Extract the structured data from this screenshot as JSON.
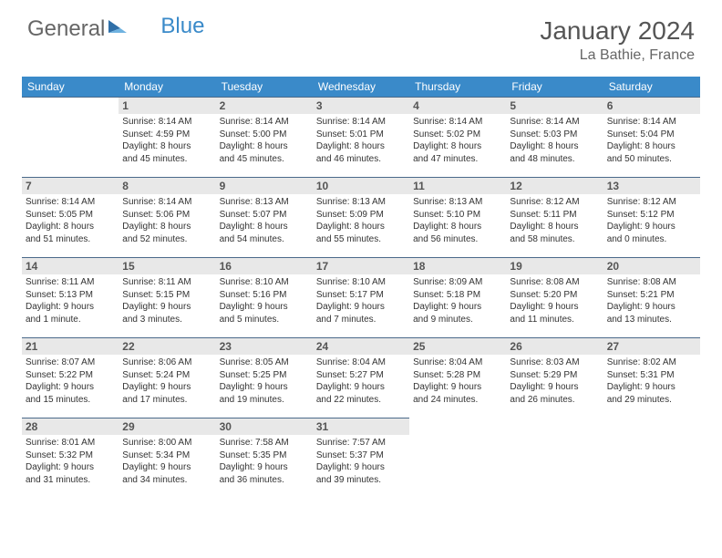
{
  "logo": {
    "part1": "General",
    "part2": "Blue"
  },
  "title": "January 2024",
  "location": "La Bathie, France",
  "colors": {
    "header_bg": "#3a8ac9",
    "daynum_bg": "#e8e8e8",
    "daynum_border": "#4a6a8a",
    "text": "#333333",
    "title_text": "#555555"
  },
  "dow": [
    "Sunday",
    "Monday",
    "Tuesday",
    "Wednesday",
    "Thursday",
    "Friday",
    "Saturday"
  ],
  "weeks": [
    [
      null,
      {
        "n": "1",
        "sr": "Sunrise: 8:14 AM",
        "ss": "Sunset: 4:59 PM",
        "d1": "Daylight: 8 hours",
        "d2": "and 45 minutes."
      },
      {
        "n": "2",
        "sr": "Sunrise: 8:14 AM",
        "ss": "Sunset: 5:00 PM",
        "d1": "Daylight: 8 hours",
        "d2": "and 45 minutes."
      },
      {
        "n": "3",
        "sr": "Sunrise: 8:14 AM",
        "ss": "Sunset: 5:01 PM",
        "d1": "Daylight: 8 hours",
        "d2": "and 46 minutes."
      },
      {
        "n": "4",
        "sr": "Sunrise: 8:14 AM",
        "ss": "Sunset: 5:02 PM",
        "d1": "Daylight: 8 hours",
        "d2": "and 47 minutes."
      },
      {
        "n": "5",
        "sr": "Sunrise: 8:14 AM",
        "ss": "Sunset: 5:03 PM",
        "d1": "Daylight: 8 hours",
        "d2": "and 48 minutes."
      },
      {
        "n": "6",
        "sr": "Sunrise: 8:14 AM",
        "ss": "Sunset: 5:04 PM",
        "d1": "Daylight: 8 hours",
        "d2": "and 50 minutes."
      }
    ],
    [
      {
        "n": "7",
        "sr": "Sunrise: 8:14 AM",
        "ss": "Sunset: 5:05 PM",
        "d1": "Daylight: 8 hours",
        "d2": "and 51 minutes."
      },
      {
        "n": "8",
        "sr": "Sunrise: 8:14 AM",
        "ss": "Sunset: 5:06 PM",
        "d1": "Daylight: 8 hours",
        "d2": "and 52 minutes."
      },
      {
        "n": "9",
        "sr": "Sunrise: 8:13 AM",
        "ss": "Sunset: 5:07 PM",
        "d1": "Daylight: 8 hours",
        "d2": "and 54 minutes."
      },
      {
        "n": "10",
        "sr": "Sunrise: 8:13 AM",
        "ss": "Sunset: 5:09 PM",
        "d1": "Daylight: 8 hours",
        "d2": "and 55 minutes."
      },
      {
        "n": "11",
        "sr": "Sunrise: 8:13 AM",
        "ss": "Sunset: 5:10 PM",
        "d1": "Daylight: 8 hours",
        "d2": "and 56 minutes."
      },
      {
        "n": "12",
        "sr": "Sunrise: 8:12 AM",
        "ss": "Sunset: 5:11 PM",
        "d1": "Daylight: 8 hours",
        "d2": "and 58 minutes."
      },
      {
        "n": "13",
        "sr": "Sunrise: 8:12 AM",
        "ss": "Sunset: 5:12 PM",
        "d1": "Daylight: 9 hours",
        "d2": "and 0 minutes."
      }
    ],
    [
      {
        "n": "14",
        "sr": "Sunrise: 8:11 AM",
        "ss": "Sunset: 5:13 PM",
        "d1": "Daylight: 9 hours",
        "d2": "and 1 minute."
      },
      {
        "n": "15",
        "sr": "Sunrise: 8:11 AM",
        "ss": "Sunset: 5:15 PM",
        "d1": "Daylight: 9 hours",
        "d2": "and 3 minutes."
      },
      {
        "n": "16",
        "sr": "Sunrise: 8:10 AM",
        "ss": "Sunset: 5:16 PM",
        "d1": "Daylight: 9 hours",
        "d2": "and 5 minutes."
      },
      {
        "n": "17",
        "sr": "Sunrise: 8:10 AM",
        "ss": "Sunset: 5:17 PM",
        "d1": "Daylight: 9 hours",
        "d2": "and 7 minutes."
      },
      {
        "n": "18",
        "sr": "Sunrise: 8:09 AM",
        "ss": "Sunset: 5:18 PM",
        "d1": "Daylight: 9 hours",
        "d2": "and 9 minutes."
      },
      {
        "n": "19",
        "sr": "Sunrise: 8:08 AM",
        "ss": "Sunset: 5:20 PM",
        "d1": "Daylight: 9 hours",
        "d2": "and 11 minutes."
      },
      {
        "n": "20",
        "sr": "Sunrise: 8:08 AM",
        "ss": "Sunset: 5:21 PM",
        "d1": "Daylight: 9 hours",
        "d2": "and 13 minutes."
      }
    ],
    [
      {
        "n": "21",
        "sr": "Sunrise: 8:07 AM",
        "ss": "Sunset: 5:22 PM",
        "d1": "Daylight: 9 hours",
        "d2": "and 15 minutes."
      },
      {
        "n": "22",
        "sr": "Sunrise: 8:06 AM",
        "ss": "Sunset: 5:24 PM",
        "d1": "Daylight: 9 hours",
        "d2": "and 17 minutes."
      },
      {
        "n": "23",
        "sr": "Sunrise: 8:05 AM",
        "ss": "Sunset: 5:25 PM",
        "d1": "Daylight: 9 hours",
        "d2": "and 19 minutes."
      },
      {
        "n": "24",
        "sr": "Sunrise: 8:04 AM",
        "ss": "Sunset: 5:27 PM",
        "d1": "Daylight: 9 hours",
        "d2": "and 22 minutes."
      },
      {
        "n": "25",
        "sr": "Sunrise: 8:04 AM",
        "ss": "Sunset: 5:28 PM",
        "d1": "Daylight: 9 hours",
        "d2": "and 24 minutes."
      },
      {
        "n": "26",
        "sr": "Sunrise: 8:03 AM",
        "ss": "Sunset: 5:29 PM",
        "d1": "Daylight: 9 hours",
        "d2": "and 26 minutes."
      },
      {
        "n": "27",
        "sr": "Sunrise: 8:02 AM",
        "ss": "Sunset: 5:31 PM",
        "d1": "Daylight: 9 hours",
        "d2": "and 29 minutes."
      }
    ],
    [
      {
        "n": "28",
        "sr": "Sunrise: 8:01 AM",
        "ss": "Sunset: 5:32 PM",
        "d1": "Daylight: 9 hours",
        "d2": "and 31 minutes."
      },
      {
        "n": "29",
        "sr": "Sunrise: 8:00 AM",
        "ss": "Sunset: 5:34 PM",
        "d1": "Daylight: 9 hours",
        "d2": "and 34 minutes."
      },
      {
        "n": "30",
        "sr": "Sunrise: 7:58 AM",
        "ss": "Sunset: 5:35 PM",
        "d1": "Daylight: 9 hours",
        "d2": "and 36 minutes."
      },
      {
        "n": "31",
        "sr": "Sunrise: 7:57 AM",
        "ss": "Sunset: 5:37 PM",
        "d1": "Daylight: 9 hours",
        "d2": "and 39 minutes."
      },
      null,
      null,
      null
    ]
  ]
}
